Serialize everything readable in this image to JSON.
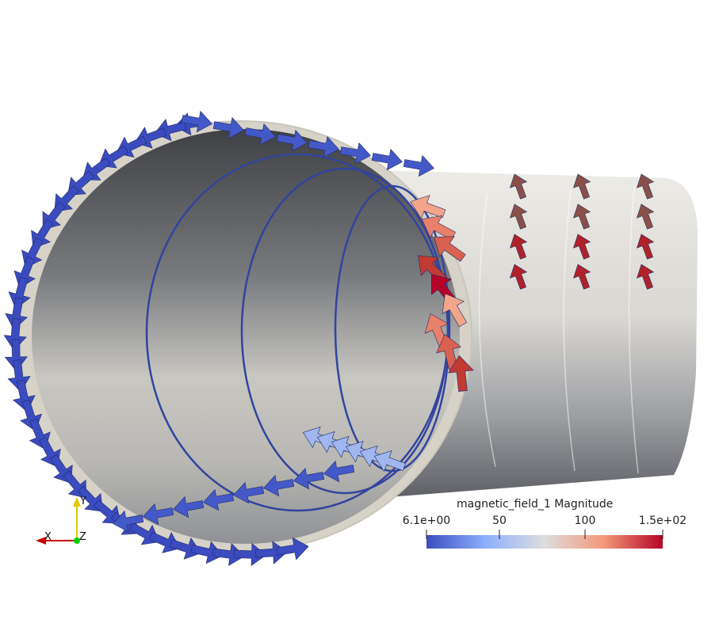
{
  "colorbar": {
    "title": "magnetic_field_1 Magnitude",
    "ticks": [
      "6.1e+00",
      "50",
      "100",
      "1.5e+02"
    ],
    "min": 6.1,
    "max": 150,
    "colors": [
      "#3b4cc0",
      "#8db0fe",
      "#dddddd",
      "#f4987a",
      "#b40426"
    ]
  },
  "axes": {
    "x": "X",
    "y": "Y",
    "z": "Z",
    "colors": {
      "x": "#cc0000",
      "y": "#e6c800",
      "z": "#00cc00"
    }
  },
  "colors": {
    "background": "#ffffff",
    "surface_dark": "#4a4c50",
    "surface_light": "#e8e6e0",
    "low_field": "#3b4cc0",
    "high_field": "#b40426"
  }
}
